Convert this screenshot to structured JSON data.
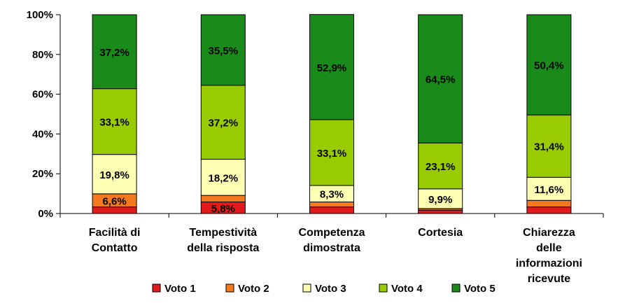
{
  "chart_data": {
    "type": "bar",
    "stacked": true,
    "categories": [
      [
        "Facilità di",
        "Contatto"
      ],
      [
        "Tempestività",
        "della risposta"
      ],
      [
        "Competenza",
        "dimostrata"
      ],
      [
        "Cortesia"
      ],
      [
        "Chiarezza",
        "delle",
        "informazioni",
        "ricevute"
      ]
    ],
    "series": [
      {
        "name": "Voto 1",
        "color": "#e31a1c",
        "values": [
          3.3,
          5.8,
          3.3,
          1.7,
          3.3
        ]
      },
      {
        "name": "Voto 2",
        "color": "#f47a20",
        "values": [
          6.6,
          3.3,
          2.5,
          0.8,
          3.3
        ]
      },
      {
        "name": "Voto 3",
        "color": "#ffffb3",
        "values": [
          19.8,
          18.2,
          8.3,
          9.9,
          11.6
        ]
      },
      {
        "name": "Voto 4",
        "color": "#99cc00",
        "values": [
          33.1,
          37.2,
          33.1,
          23.1,
          31.4
        ]
      },
      {
        "name": "Voto 5",
        "color": "#1a8a1a",
        "values": [
          37.2,
          35.5,
          52.9,
          64.5,
          50.4
        ]
      }
    ],
    "data_labels": [
      [
        null,
        "6,6%",
        "19,8%",
        "33,1%",
        "37,2%"
      ],
      [
        "5,8%",
        null,
        "18,2%",
        "37,2%",
        "35,5%"
      ],
      [
        null,
        null,
        "8,3%",
        "33,1%",
        "52,9%"
      ],
      [
        null,
        null,
        "9,9%",
        "23,1%",
        "64,5%"
      ],
      [
        null,
        null,
        "11,6%",
        "31,4%",
        "50,4%"
      ]
    ],
    "y_ticks": [
      "0%",
      "20%",
      "40%",
      "60%",
      "80%",
      "100%"
    ],
    "ylim": [
      0,
      100
    ],
    "legend_position": "bottom",
    "grid": false
  }
}
